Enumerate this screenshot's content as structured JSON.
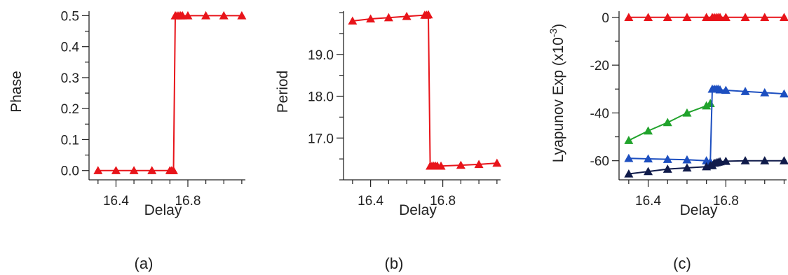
{
  "chart_data": [
    {
      "type": "line",
      "panel_label": "(a)",
      "xlabel": "Delay",
      "ylabel": "Phase",
      "xlim": [
        16.25,
        17.12
      ],
      "ylim": [
        -0.03,
        0.51
      ],
      "xticks": [
        "16.4",
        "16.8"
      ],
      "yticks": [
        "0.0",
        "0.1",
        "0.2",
        "0.3",
        "0.4",
        "0.5"
      ],
      "grid": false,
      "series": [
        {
          "color": "#e8141a",
          "marker": "triangle",
          "points": [
            [
              16.3,
              0
            ],
            [
              16.4,
              0
            ],
            [
              16.5,
              0
            ],
            [
              16.6,
              0
            ],
            [
              16.7,
              0
            ],
            [
              16.71,
              0
            ],
            [
              16.72,
              0
            ],
            [
              16.73,
              0.5
            ],
            [
              16.74,
              0.5
            ],
            [
              16.75,
              0.5
            ],
            [
              16.76,
              0.5
            ],
            [
              16.77,
              0.5
            ],
            [
              16.8,
              0.5
            ],
            [
              16.9,
              0.5
            ],
            [
              17.0,
              0.5
            ],
            [
              17.1,
              0.5
            ]
          ]
        }
      ]
    },
    {
      "type": "line",
      "panel_label": "(b)",
      "xlabel": "Delay",
      "ylabel": "Period",
      "xlim": [
        16.25,
        17.12
      ],
      "ylim": [
        16.0,
        20.0
      ],
      "xticks": [
        "16.4",
        "16.8"
      ],
      "yticks": [
        "17.0",
        "18.0",
        "19.0"
      ],
      "grid": false,
      "series": [
        {
          "color": "#e8141a",
          "marker": "triangle",
          "points": [
            [
              16.3,
              19.8
            ],
            [
              16.4,
              19.85
            ],
            [
              16.5,
              19.88
            ],
            [
              16.6,
              19.91
            ],
            [
              16.7,
              19.94
            ],
            [
              16.71,
              19.94
            ],
            [
              16.72,
              19.95
            ],
            [
              16.73,
              16.33
            ],
            [
              16.74,
              16.33
            ],
            [
              16.75,
              16.33
            ],
            [
              16.76,
              16.33
            ],
            [
              16.77,
              16.33
            ],
            [
              16.79,
              16.33
            ],
            [
              16.9,
              16.35
            ],
            [
              17.0,
              16.37
            ],
            [
              17.1,
              16.4
            ]
          ]
        }
      ]
    },
    {
      "type": "line",
      "panel_label": "(c)",
      "xlabel": "Delay",
      "ylabel": "Lyapunov Exp (x10",
      "ylabel_exponent": "-3",
      "ylabel_close": ")",
      "xlim": [
        16.25,
        17.12
      ],
      "ylim": [
        -68,
        2
      ],
      "xticks": [
        "16.4",
        "16.8"
      ],
      "yticks": [
        "0",
        "-20",
        "-40",
        "-60"
      ],
      "grid": false,
      "series": [
        {
          "color": "#e8141a",
          "marker": "triangle",
          "points": [
            [
              16.3,
              0
            ],
            [
              16.4,
              0
            ],
            [
              16.5,
              0
            ],
            [
              16.6,
              0
            ],
            [
              16.7,
              0
            ],
            [
              16.73,
              0
            ],
            [
              16.74,
              0
            ],
            [
              16.75,
              0
            ],
            [
              16.76,
              0
            ],
            [
              16.77,
              0
            ],
            [
              16.8,
              0
            ],
            [
              16.9,
              0
            ],
            [
              17.0,
              0
            ],
            [
              17.1,
              0
            ]
          ]
        },
        {
          "color": "#21a32c",
          "marker": "triangle",
          "points": [
            [
              16.3,
              -51.5
            ],
            [
              16.4,
              -47.5
            ],
            [
              16.5,
              -44
            ],
            [
              16.6,
              -40
            ],
            [
              16.7,
              -37
            ],
            [
              16.72,
              -36
            ]
          ]
        },
        {
          "color": "#1d4fc0",
          "marker": "triangle",
          "points": [
            [
              16.3,
              -59
            ],
            [
              16.4,
              -59.2
            ],
            [
              16.5,
              -59.4
            ],
            [
              16.6,
              -59.6
            ],
            [
              16.7,
              -60
            ],
            [
              16.72,
              -60.5
            ],
            [
              16.73,
              -30
            ],
            [
              16.74,
              -30
            ],
            [
              16.75,
              -30
            ],
            [
              16.76,
              -30
            ],
            [
              16.77,
              -30.3
            ],
            [
              16.8,
              -30.5
            ],
            [
              16.9,
              -31
            ],
            [
              17.0,
              -31.5
            ],
            [
              17.1,
              -32
            ]
          ]
        },
        {
          "color": "#101b4a",
          "marker": "triangle",
          "points": [
            [
              16.3,
              -65.5
            ],
            [
              16.4,
              -64.5
            ],
            [
              16.5,
              -63.5
            ],
            [
              16.6,
              -63
            ],
            [
              16.7,
              -62.5
            ],
            [
              16.72,
              -62
            ],
            [
              16.73,
              -62
            ],
            [
              16.74,
              -61
            ],
            [
              16.75,
              -60.8
            ],
            [
              16.76,
              -60.6
            ],
            [
              16.77,
              -60.4
            ],
            [
              16.8,
              -60.2
            ],
            [
              16.9,
              -60
            ],
            [
              17.0,
              -60
            ],
            [
              17.1,
              -60
            ]
          ]
        }
      ]
    }
  ]
}
